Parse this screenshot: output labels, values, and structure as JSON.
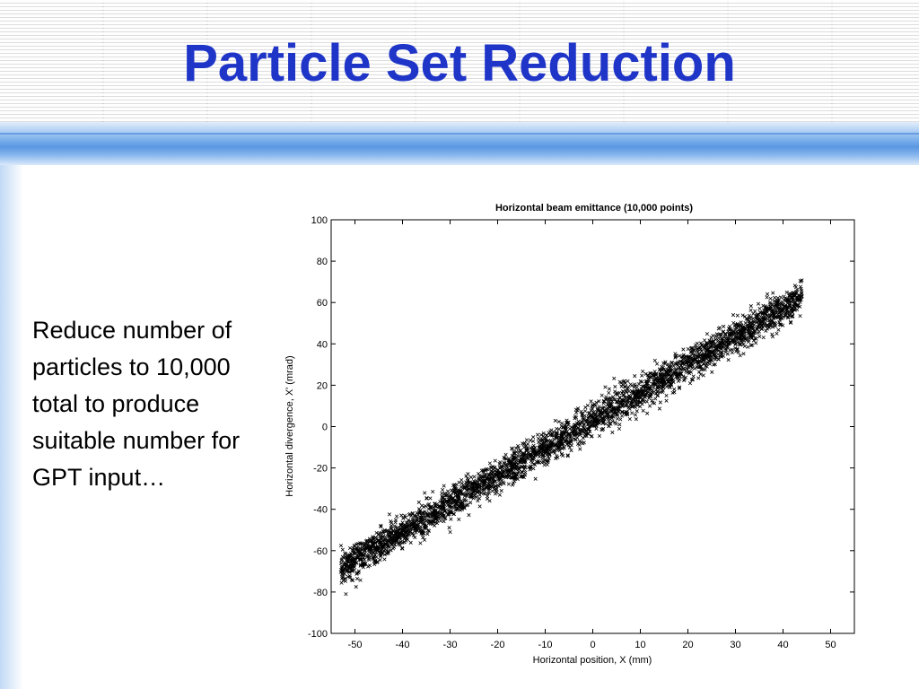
{
  "slide": {
    "title": "Particle Set Reduction",
    "body_text": "Reduce number of particles to 10,000 total to produce suitable number for GPT input…"
  },
  "chart_data": {
    "type": "scatter",
    "title": "Horizontal beam emittance (10,000 points)",
    "xlabel": "Horizontal position, X (mm)",
    "ylabel": "Horizontal divergence, X' (mrad)",
    "xlim": [
      -55,
      55
    ],
    "ylim": [
      -100,
      100
    ],
    "xticks": [
      -50,
      -40,
      -30,
      -20,
      -10,
      0,
      10,
      20,
      30,
      40,
      50
    ],
    "yticks": [
      -100,
      -80,
      -60,
      -40,
      -20,
      0,
      20,
      40,
      60,
      80,
      100
    ],
    "marker": "x",
    "marker_color": "#000000",
    "point_count": 10000,
    "distribution": {
      "x_min": -53,
      "x_max": 44,
      "slope_mrad_per_mm": 1.35,
      "intercept_mrad": 3,
      "y_spread_mrad": 4
    },
    "grid": false
  }
}
